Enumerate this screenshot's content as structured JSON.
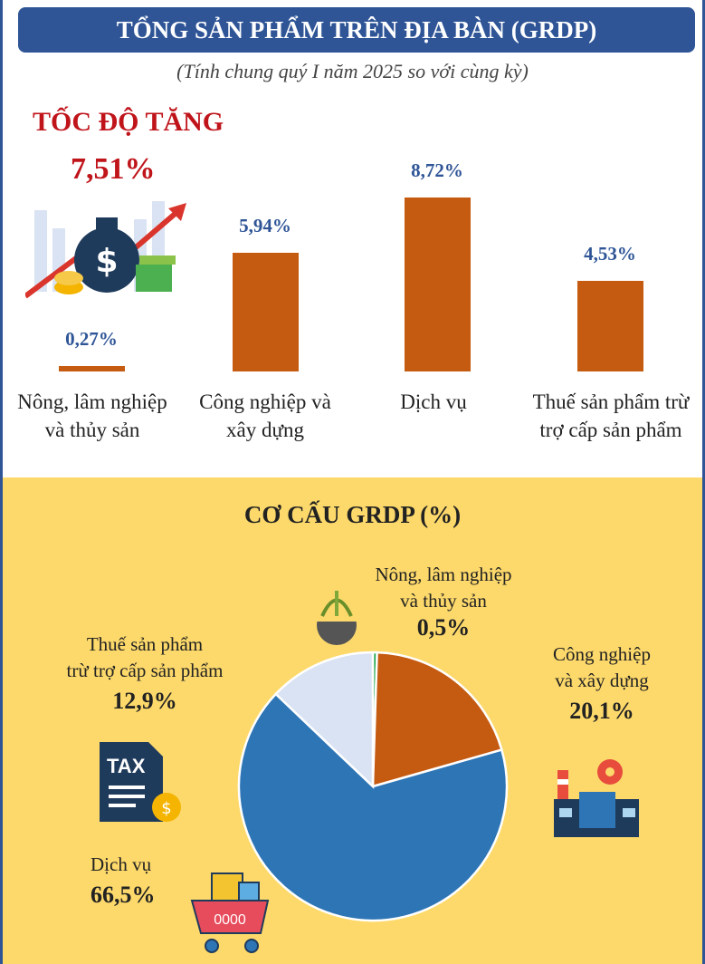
{
  "header": {
    "title": "TỔNG SẢN PHẨM TRÊN ĐỊA BÀN (GRDP)",
    "subtitle": "(Tính chung quý I năm 2025 so với cùng kỳ)"
  },
  "growth": {
    "title": "TỐC ĐỘ TĂNG",
    "total": "7,51%"
  },
  "chart_data": [
    {
      "type": "bar",
      "title": "TỐC ĐỘ TĂNG",
      "categories": [
        "Nông, lâm nghiệp và thủy sản",
        "Công nghiệp và xây dựng",
        "Dịch vụ",
        "Thuế sản phẩm trừ trợ cấp sản phẩm"
      ],
      "values": [
        0.27,
        5.94,
        8.72,
        4.53
      ],
      "labels": [
        "0,27%",
        "5,94%",
        "8,72%",
        "4,53%"
      ],
      "unit": "%",
      "color": "#c55a11"
    },
    {
      "type": "pie",
      "title": "CƠ CẤU GRDP (%)",
      "categories": [
        "Nông, lâm nghiệp và thủy sản",
        "Công nghiệp và xây dựng",
        "Dịch vụ",
        "Thuế sản phẩm trừ trợ cấp sản phẩm"
      ],
      "values": [
        0.5,
        20.1,
        66.5,
        12.9
      ],
      "labels": [
        "0,5%",
        "20,1%",
        "66,5%",
        "12,9%"
      ],
      "colors": [
        "#1fa64a",
        "#c55a11",
        "#2e75b6",
        "#dae3f3"
      ]
    }
  ],
  "pie_labels": {
    "agri_l1": "Nông, lâm nghiệp",
    "agri_l2": "và thủy sản",
    "ind_l1": "Công nghiệp",
    "ind_l2": "và xây dựng",
    "svc": "Dịch vụ",
    "tax_l1": "Thuế sản phẩm",
    "tax_l2": "trừ trợ cấp sản phẩm",
    "tax_icon_text": "TAX",
    "cart_text": "0000"
  }
}
